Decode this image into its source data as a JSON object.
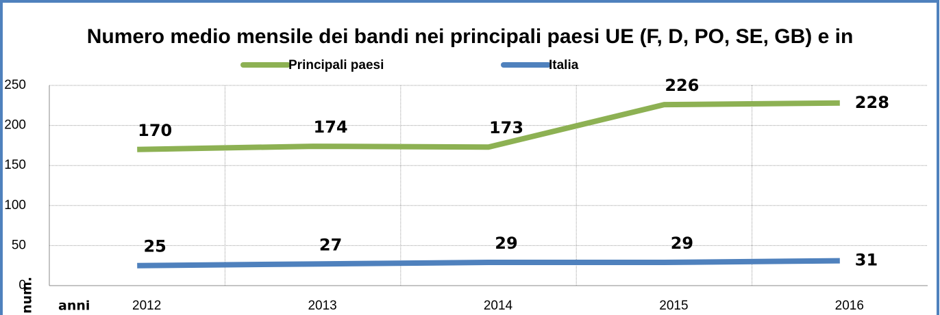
{
  "chart_data": {
    "type": "line",
    "title": "Numero medio mensile dei bandi nei principali paesi UE (F, D, PO, SE, GB) e in",
    "xlabel": "anni",
    "ylabel": "num.",
    "categories": [
      "2012",
      "2013",
      "2014",
      "2015",
      "2016"
    ],
    "series": [
      {
        "name": "Principali paesi",
        "color": "#8db153",
        "values": [
          170,
          174,
          173,
          226,
          228
        ]
      },
      {
        "name": "Italia",
        "color": "#4f81bd",
        "values": [
          25,
          27,
          29,
          29,
          31
        ]
      }
    ],
    "ylim": [
      0,
      250
    ],
    "yticks": [
      0,
      50,
      100,
      150,
      200,
      250
    ],
    "grid": true
  }
}
